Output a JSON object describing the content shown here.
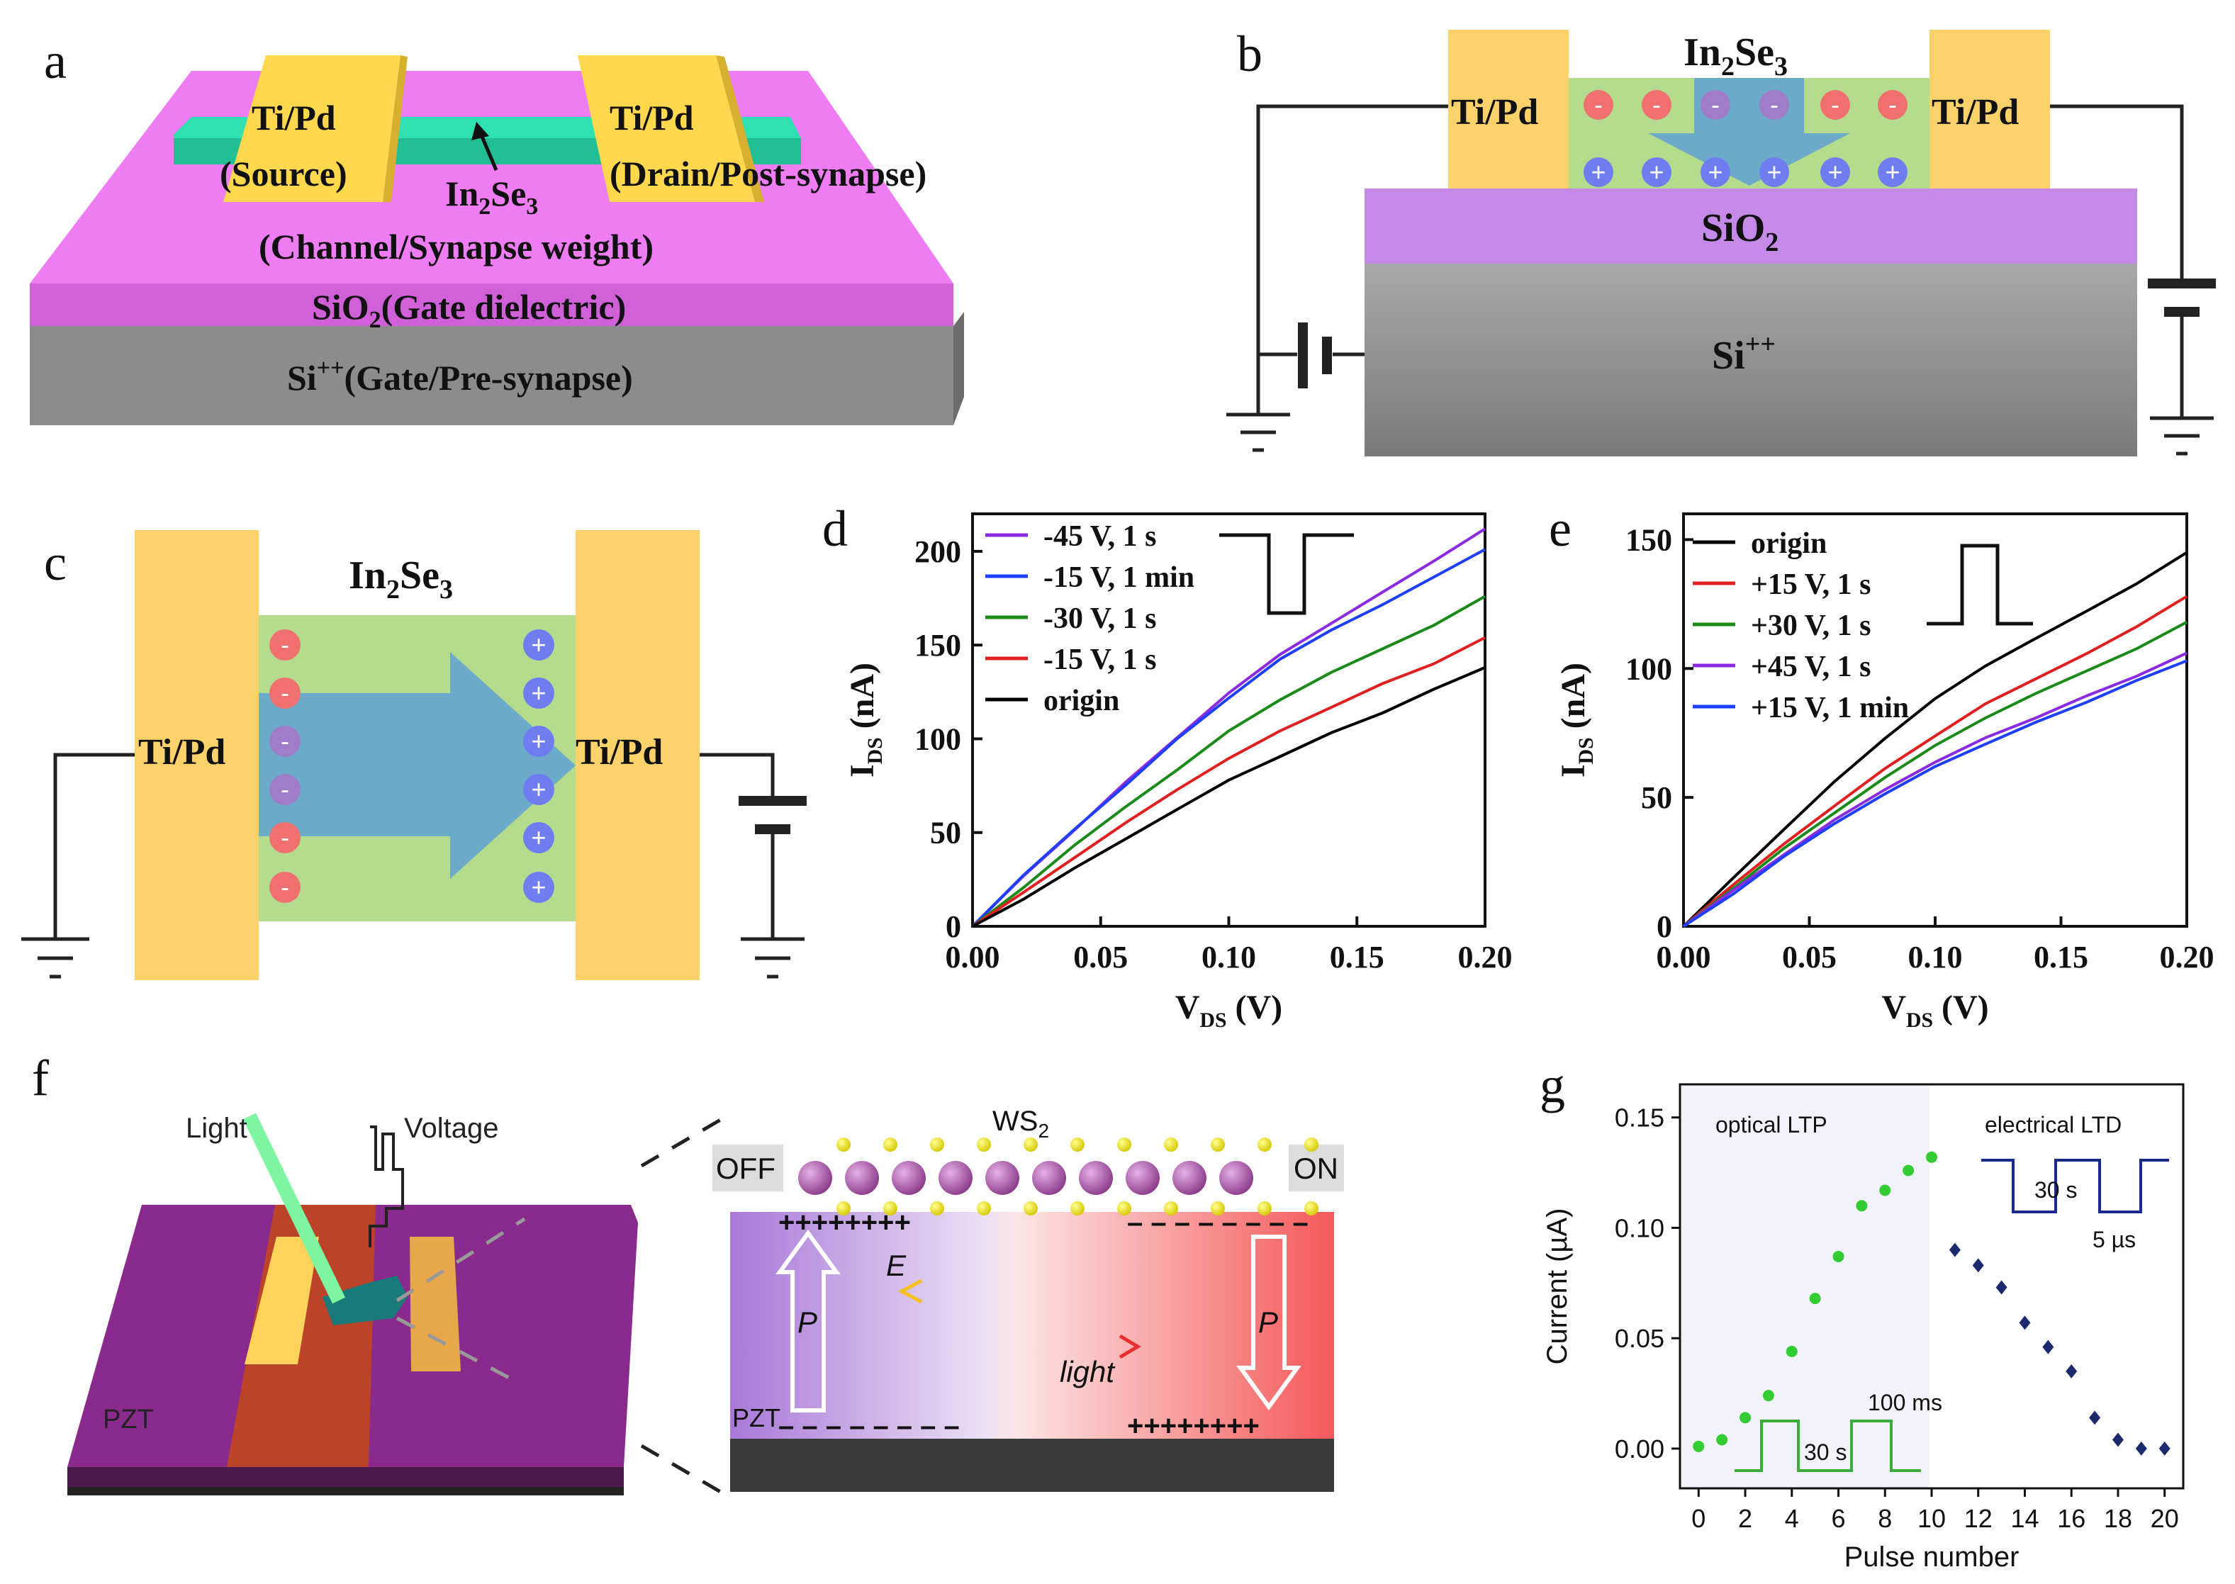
{
  "colors": {
    "magenta": "#ec6ff0",
    "green_channel": "#2fe0b0",
    "gold": "#ffd84d",
    "electrode": "#fbd26a",
    "sio2": "#c58ae8",
    "si_gray": "#9a9a9a",
    "plus_blue": "#6f7df0",
    "minus_red": "#f07070",
    "minus_purple": "#a07cc8",
    "arrow_blue": "#5a9ed8",
    "green_zone": "#b4dc8c"
  },
  "panel_a": {
    "label": "a",
    "source": "Ti/Pd",
    "source_role": "(Source)",
    "drain": "Ti/Pd",
    "drain_role": "(Drain/Post-synapse)",
    "channel": "In",
    "channel_sub1": "2",
    "channel_mid": "Se",
    "channel_sub2": "3",
    "channel_role": "(Channel/Synapse weight)",
    "sio2_base": "SiO",
    "sio2_sub": "2",
    "sio2_role": "(Gate dielectric)",
    "si_base": "Si",
    "si_sup": "++",
    "si_role": "(Gate/Pre-synapse)"
  },
  "panel_b": {
    "label": "b",
    "title_base": "In",
    "title_sub1": "2",
    "title_mid": "Se",
    "title_sub2": "3",
    "left_electrode": "Ti/Pd",
    "right_electrode": "Ti/Pd",
    "sio2_base": "SiO",
    "sio2_sub": "2",
    "si_base": "Si",
    "si_sup": "++",
    "minus": "-",
    "plus": "+"
  },
  "panel_c": {
    "label": "c",
    "title_base": "In",
    "title_sub1": "2",
    "title_mid": "Se",
    "title_sub2": "3",
    "left_electrode": "Ti/Pd",
    "right_electrode": "Ti/Pd",
    "minus": "-",
    "plus": "+"
  },
  "chart_data": [
    {
      "id": "d",
      "type": "line",
      "label": "d",
      "xlabel_base": "V",
      "xlabel_sub": "DS",
      "xlabel_unit": " (V)",
      "ylabel_base": "I",
      "ylabel_sub": "DS",
      "ylabel_unit": " (nA)",
      "xlim": [
        0,
        0.2
      ],
      "ylim": [
        0,
        220
      ],
      "xticks": [
        0.0,
        0.05,
        0.1,
        0.15,
        0.2
      ],
      "xtick_labels": [
        "0.00",
        "0.05",
        "0.10",
        "0.15",
        "0.20"
      ],
      "yticks": [
        0,
        50,
        100,
        150,
        200
      ],
      "ytick_labels": [
        "0",
        "50",
        "100",
        "150",
        "200"
      ],
      "x": [
        0,
        0.02,
        0.04,
        0.06,
        0.08,
        0.1,
        0.12,
        0.14,
        0.16,
        0.18,
        0.2
      ],
      "series": [
        {
          "name": "-45 V, 1 s",
          "color": "#8a2be2",
          "values": [
            0,
            27,
            52,
            77,
            101,
            124,
            145,
            162,
            178,
            195,
            212
          ]
        },
        {
          "name": "-15 V, 1 min",
          "color": "#1f3fff",
          "values": [
            0,
            27,
            52,
            76,
            100,
            122,
            142,
            158,
            172,
            186,
            201
          ]
        },
        {
          "name": "-30 V, 1 s",
          "color": "#1a8a1a",
          "values": [
            0,
            21,
            43,
            64,
            84,
            104,
            121,
            135,
            148,
            161,
            176
          ]
        },
        {
          "name": "-15 V, 1 s",
          "color": "#e02020",
          "values": [
            0,
            18,
            37,
            55,
            73,
            90,
            104,
            117,
            129,
            140,
            154
          ]
        },
        {
          "name": "origin",
          "color": "#000000",
          "values": [
            0,
            15,
            31,
            47,
            62,
            78,
            91,
            103,
            114,
            126,
            138
          ]
        }
      ],
      "inset": "negative-pulse"
    },
    {
      "id": "e",
      "type": "line",
      "label": "e",
      "xlabel_base": "V",
      "xlabel_sub": "DS",
      "xlabel_unit": " (V)",
      "ylabel_base": "I",
      "ylabel_sub": "DS",
      "ylabel_unit": " (nA)",
      "xlim": [
        0,
        0.2
      ],
      "ylim": [
        0,
        160
      ],
      "xticks": [
        0.0,
        0.05,
        0.1,
        0.15,
        0.2
      ],
      "xtick_labels": [
        "0.00",
        "0.05",
        "0.10",
        "0.15",
        "0.20"
      ],
      "yticks": [
        0,
        50,
        100,
        150
      ],
      "ytick_labels": [
        "0",
        "50",
        "100",
        "150"
      ],
      "x": [
        0,
        0.02,
        0.04,
        0.06,
        0.08,
        0.1,
        0.12,
        0.14,
        0.16,
        0.18,
        0.2
      ],
      "series": [
        {
          "name": "origin",
          "color": "#000000",
          "values": [
            0,
            19,
            38,
            56,
            73,
            88,
            101,
            112,
            122,
            133,
            145
          ]
        },
        {
          "name": "+15 V, 1 s",
          "color": "#e02020",
          "values": [
            0,
            16,
            32,
            47,
            61,
            74,
            86,
            96,
            106,
            116,
            128
          ]
        },
        {
          "name": "+30 V, 1 s",
          "color": "#1a8a1a",
          "values": [
            0,
            15,
            30,
            44,
            58,
            70,
            81,
            90,
            99,
            108,
            118
          ]
        },
        {
          "name": "+45 V, 1 s",
          "color": "#8a2be2",
          "values": [
            0,
            14,
            28,
            41,
            53,
            64,
            73,
            81,
            89,
            97,
            106
          ]
        },
        {
          "name": "+15 V, 1 min",
          "color": "#1f3fff",
          "values": [
            0,
            13,
            27,
            40,
            51,
            62,
            71,
            79,
            87,
            95,
            103
          ]
        }
      ],
      "inset": "positive-pulse"
    },
    {
      "id": "g",
      "type": "scatter",
      "label": "g",
      "xlabel": "Pulse number",
      "ylabel": "Current (µA)",
      "xlim": [
        -0.8,
        20.8
      ],
      "ylim": [
        -0.018,
        0.165
      ],
      "xticks": [
        0,
        2,
        4,
        6,
        8,
        10,
        12,
        14,
        16,
        18,
        20
      ],
      "xtick_labels": [
        "0",
        "2",
        "4",
        "6",
        "8",
        "10",
        "12",
        "14",
        "16",
        "18",
        "20"
      ],
      "yticks": [
        0.0,
        0.05,
        0.1,
        0.15
      ],
      "ytick_labels": [
        "0.00",
        "0.05",
        "0.10",
        "0.15"
      ],
      "series": [
        {
          "name": "optical LTP",
          "color": "#33cc33",
          "marker": "circle",
          "x": [
            0,
            1,
            2,
            3,
            4,
            5,
            6,
            7,
            8,
            9,
            10
          ],
          "values": [
            0.001,
            0.004,
            0.014,
            0.024,
            0.044,
            0.068,
            0.087,
            0.11,
            0.117,
            0.126,
            0.132
          ]
        },
        {
          "name": "electrical LTD",
          "color": "#1a2a6c",
          "marker": "diamond",
          "x": [
            11,
            12,
            13,
            14,
            15,
            16,
            17,
            18,
            19,
            20
          ],
          "values": [
            0.09,
            0.083,
            0.073,
            0.057,
            0.046,
            0.035,
            0.014,
            0.004,
            0.0,
            0.0
          ]
        }
      ],
      "region_labels": [
        "optical LTP",
        "electrical LTD"
      ],
      "inset_optical": {
        "high": "100 ms",
        "low": "30 s"
      },
      "inset_electrical": {
        "high": "30 s",
        "low": "5 µs"
      }
    }
  ],
  "panel_f": {
    "label": "f",
    "light": "Light",
    "voltage": "Voltage",
    "pzt_left": "PZT",
    "ws2_base": "WS",
    "ws2_sub": "2",
    "off": "OFF",
    "on": "ON",
    "pzt_right": "PZT",
    "e_field": "E",
    "light_arrow": "light",
    "p_left": "P",
    "p_right": "P",
    "plus_row": "++++++++",
    "minus_row": "– – – – – – – –"
  }
}
